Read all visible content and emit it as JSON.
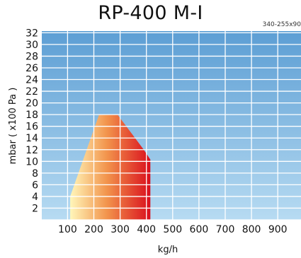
{
  "title": "RP-400 M-I",
  "code": "340-255x90",
  "chart_data": {
    "type": "area",
    "title": "RP-400 M-I",
    "xlabel": "kg/h",
    "ylabel": "mbar ( x100 Pa )",
    "x_ticks": [
      "100",
      "200",
      "300",
      "400",
      "500",
      "600",
      "700",
      "800",
      "900"
    ],
    "y_ticks": [
      "2",
      "4",
      "6",
      "8",
      "10",
      "12",
      "14",
      "16",
      "18",
      "20",
      "22",
      "24",
      "26",
      "28",
      "30",
      "32"
    ],
    "xlim": [
      0,
      1000
    ],
    "ylim": [
      0,
      32
    ],
    "grid": true,
    "series": [
      {
        "points": [
          [
            110,
            0
          ],
          [
            110,
            4
          ],
          [
            220,
            18
          ],
          [
            290,
            18
          ],
          [
            390,
            12
          ],
          [
            415,
            10.3
          ],
          [
            415,
            0
          ]
        ]
      }
    ],
    "colors": {
      "background_top": "#5c9ed4",
      "background_bottom": "#b7dbf2",
      "grid": "#ffffff",
      "fill_start": "#fff5b8",
      "fill_mid": "#f2944c",
      "fill_end": "#d90d1c"
    }
  }
}
